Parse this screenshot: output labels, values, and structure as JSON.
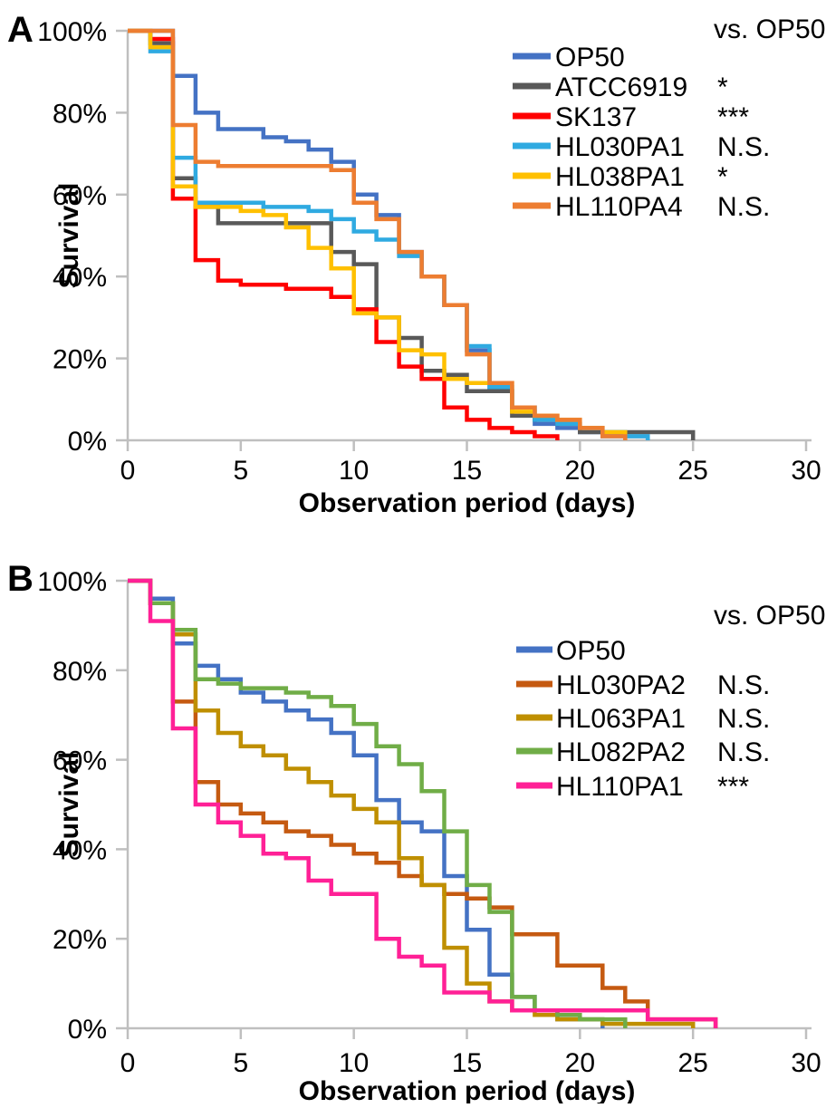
{
  "figure": {
    "legend_note": "vs. OP50",
    "axis_color": "#BFBFBF",
    "tick_color": "#A6A6A6"
  },
  "chart_data": [
    {
      "type": "line",
      "subtype": "step-survival",
      "panel_label": "A",
      "xlabel": "Observation period (days)",
      "ylabel": "Survival",
      "xlim": [
        0,
        30
      ],
      "ylim": [
        0,
        100
      ],
      "x_ticks": [
        0,
        5,
        10,
        15,
        20,
        25,
        30
      ],
      "x_tick_labels": [
        "0",
        "5",
        "10",
        "15",
        "20",
        "25",
        "30"
      ],
      "y_ticks": [
        100,
        80,
        60,
        40,
        20,
        0
      ],
      "y_tick_labels": [
        "100%",
        "80%",
        "60%",
        "40%",
        "20%",
        "0%"
      ],
      "legend_note": "vs. OP50",
      "legend_position": "upper right",
      "grid": false,
      "series": [
        {
          "name": "OP50",
          "color": "#4472C4",
          "significance": "",
          "days": [
            0,
            1,
            2,
            3,
            4,
            5,
            6,
            7,
            8,
            9,
            10,
            11,
            12,
            13,
            14,
            15,
            16,
            17,
            18,
            19,
            20,
            21,
            22,
            23
          ],
          "values": [
            100,
            100,
            89,
            80,
            76,
            76,
            74,
            73,
            71,
            68,
            60,
            55,
            46,
            40,
            33,
            22,
            12,
            8,
            4,
            3,
            2,
            1,
            1,
            0
          ]
        },
        {
          "name": "ATCC6919",
          "color": "#595959",
          "significance": "*",
          "days": [
            0,
            1,
            2,
            3,
            4,
            5,
            6,
            7,
            8,
            9,
            10,
            11,
            12,
            13,
            14,
            15,
            16,
            17,
            18,
            19,
            20,
            21,
            22,
            23,
            24,
            25
          ],
          "values": [
            100,
            97,
            64,
            57,
            53,
            53,
            53,
            53,
            53,
            46,
            43,
            30,
            25,
            17,
            16,
            12,
            12,
            6,
            5,
            4,
            2,
            2,
            2,
            2,
            2,
            0
          ]
        },
        {
          "name": "SK137",
          "color": "#FF0000",
          "significance": "***",
          "days": [
            0,
            1,
            2,
            3,
            4,
            5,
            6,
            7,
            8,
            9,
            10,
            11,
            12,
            13,
            14,
            15,
            16,
            17,
            18,
            19
          ],
          "values": [
            100,
            98,
            59,
            44,
            39,
            38,
            38,
            37,
            37,
            35,
            32,
            24,
            18,
            15,
            8,
            5,
            3,
            2,
            1,
            0
          ]
        },
        {
          "name": "HL030PA1",
          "color": "#2FAAE1",
          "significance": "N.S.",
          "days": [
            0,
            1,
            2,
            3,
            4,
            5,
            6,
            7,
            8,
            9,
            10,
            11,
            12,
            13,
            14,
            15,
            16,
            17,
            18,
            19,
            20,
            21,
            22,
            23
          ],
          "values": [
            100,
            95,
            69,
            58,
            58,
            58,
            57,
            57,
            56,
            54,
            51,
            49,
            45,
            40,
            33,
            23,
            13,
            8,
            5,
            4,
            3,
            2,
            1,
            0
          ]
        },
        {
          "name": "HL038PA1",
          "color": "#FFC000",
          "significance": "*",
          "days": [
            0,
            1,
            2,
            3,
            4,
            5,
            6,
            7,
            8,
            9,
            10,
            11,
            12,
            13,
            14,
            15,
            16,
            17,
            18,
            19,
            20,
            21,
            22
          ],
          "values": [
            100,
            96,
            62,
            57,
            57,
            56,
            55,
            52,
            47,
            42,
            31,
            30,
            22,
            21,
            15,
            14,
            14,
            7,
            6,
            5,
            3,
            2,
            0
          ]
        },
        {
          "name": "HL110PA4",
          "color": "#ED7D31",
          "significance": "N.S.",
          "days": [
            0,
            1,
            2,
            3,
            4,
            5,
            6,
            7,
            8,
            9,
            10,
            11,
            12,
            13,
            14,
            15,
            16,
            17,
            18,
            19,
            20,
            21,
            22
          ],
          "values": [
            100,
            100,
            77,
            68,
            67,
            67,
            67,
            67,
            67,
            66,
            58,
            54,
            46,
            40,
            33,
            21,
            14,
            8,
            6,
            5,
            3,
            1,
            0
          ]
        }
      ]
    },
    {
      "type": "line",
      "subtype": "step-survival",
      "panel_label": "B",
      "xlabel": "Observation period (days)",
      "ylabel": "Survival",
      "xlim": [
        0,
        30
      ],
      "ylim": [
        0,
        100
      ],
      "x_ticks": [
        0,
        5,
        10,
        15,
        20,
        25,
        30
      ],
      "x_tick_labels": [
        "0",
        "5",
        "10",
        "15",
        "20",
        "25",
        "30"
      ],
      "y_ticks": [
        100,
        80,
        60,
        40,
        20,
        0
      ],
      "y_tick_labels": [
        "100%",
        "80%",
        "60%",
        "40%",
        "20%",
        "0%"
      ],
      "legend_note": "vs. OP50",
      "legend_position": "upper right",
      "grid": false,
      "series": [
        {
          "name": "OP50",
          "color": "#4472C4",
          "significance": "",
          "days": [
            0,
            1,
            2,
            3,
            4,
            5,
            6,
            7,
            8,
            9,
            10,
            11,
            12,
            13,
            14,
            15,
            16,
            17,
            18,
            19,
            20,
            21
          ],
          "values": [
            100,
            96,
            86,
            81,
            78,
            75,
            73,
            71,
            69,
            66,
            61,
            51,
            46,
            44,
            34,
            22,
            12,
            7,
            4,
            2,
            2,
            0
          ]
        },
        {
          "name": "HL030PA2",
          "color": "#C55A11",
          "significance": "N.S.",
          "days": [
            0,
            1,
            2,
            3,
            4,
            5,
            6,
            7,
            8,
            9,
            10,
            11,
            12,
            13,
            14,
            15,
            16,
            17,
            18,
            19,
            20,
            21,
            22,
            23,
            24,
            25,
            26
          ],
          "values": [
            100,
            95,
            73,
            55,
            50,
            48,
            46,
            44,
            43,
            41,
            39,
            37,
            34,
            32,
            30,
            29,
            27,
            21,
            21,
            14,
            14,
            9,
            6,
            2,
            2,
            2,
            0
          ]
        },
        {
          "name": "HL063PA1",
          "color": "#BF8F00",
          "significance": "N.S.",
          "days": [
            0,
            1,
            2,
            3,
            4,
            5,
            6,
            7,
            8,
            9,
            10,
            11,
            12,
            13,
            14,
            15,
            16,
            17,
            18,
            19,
            20,
            21,
            22,
            23,
            24,
            25
          ],
          "values": [
            100,
            95,
            88,
            71,
            66,
            63,
            61,
            58,
            55,
            52,
            49,
            46,
            38,
            32,
            18,
            10,
            6,
            4,
            3,
            2,
            2,
            1,
            1,
            1,
            1,
            0
          ]
        },
        {
          "name": "HL082PA2",
          "color": "#70AD47",
          "significance": "N.S.",
          "days": [
            0,
            1,
            2,
            3,
            4,
            5,
            6,
            7,
            8,
            9,
            10,
            11,
            12,
            13,
            14,
            15,
            16,
            17,
            18,
            19,
            20,
            21,
            22
          ],
          "values": [
            100,
            95,
            89,
            78,
            77,
            76,
            76,
            75,
            74,
            72,
            68,
            63,
            59,
            53,
            44,
            32,
            26,
            7,
            4,
            3,
            2,
            2,
            0
          ]
        },
        {
          "name": "HL110PA1",
          "color": "#FF2096",
          "significance": "***",
          "days": [
            0,
            1,
            2,
            3,
            4,
            5,
            6,
            7,
            8,
            9,
            10,
            11,
            12,
            13,
            14,
            15,
            16,
            17,
            18,
            19,
            20,
            21,
            22,
            23,
            24,
            25,
            26
          ],
          "values": [
            100,
            91,
            67,
            50,
            46,
            43,
            39,
            38,
            33,
            30,
            30,
            20,
            16,
            14,
            8,
            8,
            6,
            4,
            4,
            4,
            4,
            4,
            4,
            2,
            2,
            2,
            0
          ]
        }
      ]
    }
  ]
}
